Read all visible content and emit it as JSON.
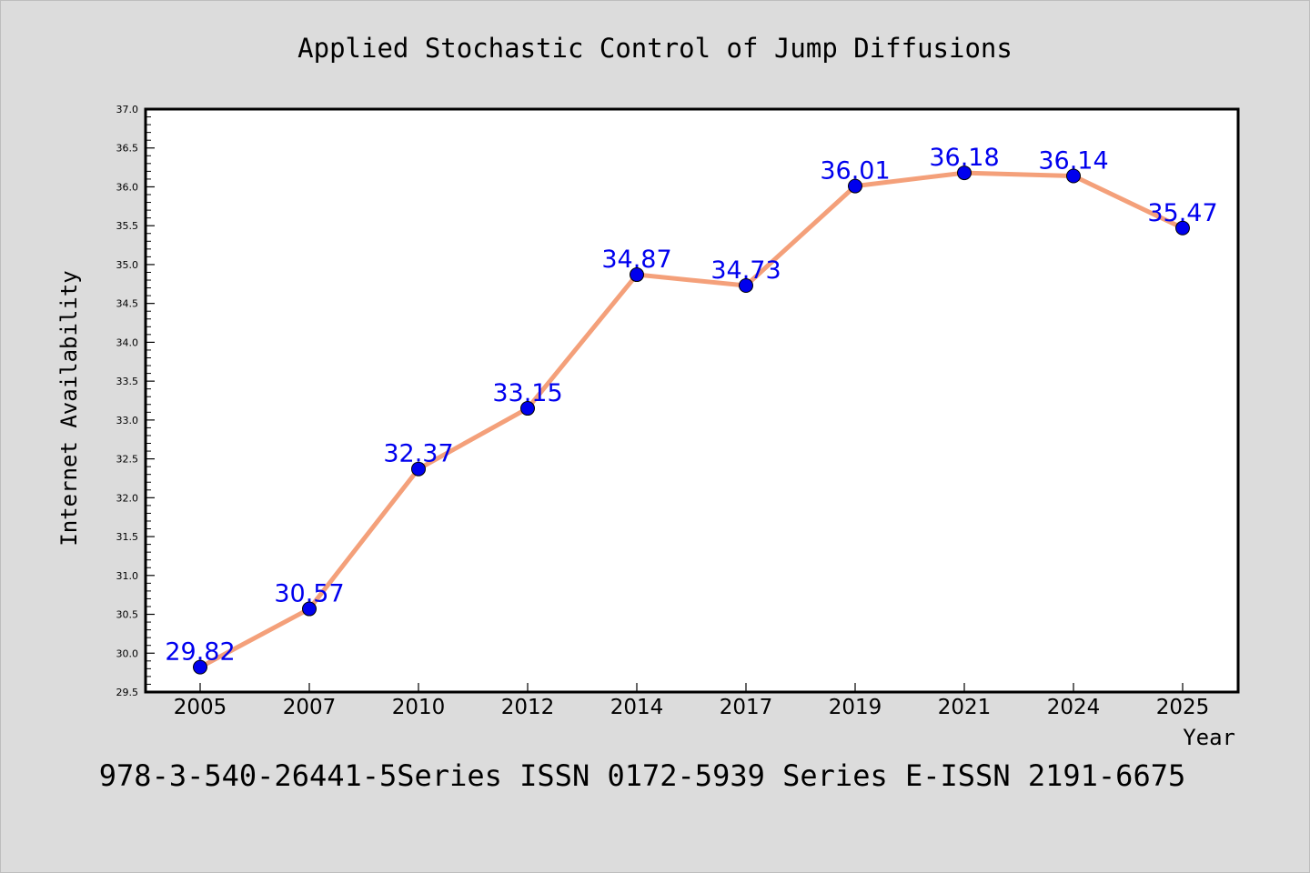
{
  "chart_data": {
    "type": "line",
    "title": "Applied Stochastic Control of Jump Diffusions",
    "xlabel": "Year",
    "ylabel": "Internet Availability",
    "categories": [
      "2005",
      "2007",
      "2010",
      "2012",
      "2014",
      "2017",
      "2019",
      "2021",
      "2024",
      "2025"
    ],
    "series": [
      {
        "values": [
          29.82,
          30.57,
          32.37,
          33.15,
          34.87,
          34.73,
          36.01,
          36.18,
          36.14,
          35.47
        ],
        "line_color": "#f4a07a",
        "marker_color": "#0000ee"
      }
    ],
    "data_labels": [
      "29.82",
      "30.57",
      "32.37",
      "33.15",
      "34.87",
      "34.73",
      "36.01",
      "36.18",
      "36.14",
      "35.47"
    ],
    "label_color": "#0000ee",
    "ylim": [
      29.5,
      37.0
    ],
    "yticks": [
      "29.5",
      "30.0",
      "30.5",
      "31.0",
      "31.5",
      "32.0",
      "32.5",
      "33.0",
      "33.5",
      "34.0",
      "34.5",
      "35.0",
      "35.5",
      "36.0",
      "36.5",
      "37.0"
    ],
    "grid": false,
    "legend": "none",
    "footnote": "978-3-540-26441-5Series ISSN 0172-5939 Series E-ISSN 2191-6675"
  }
}
